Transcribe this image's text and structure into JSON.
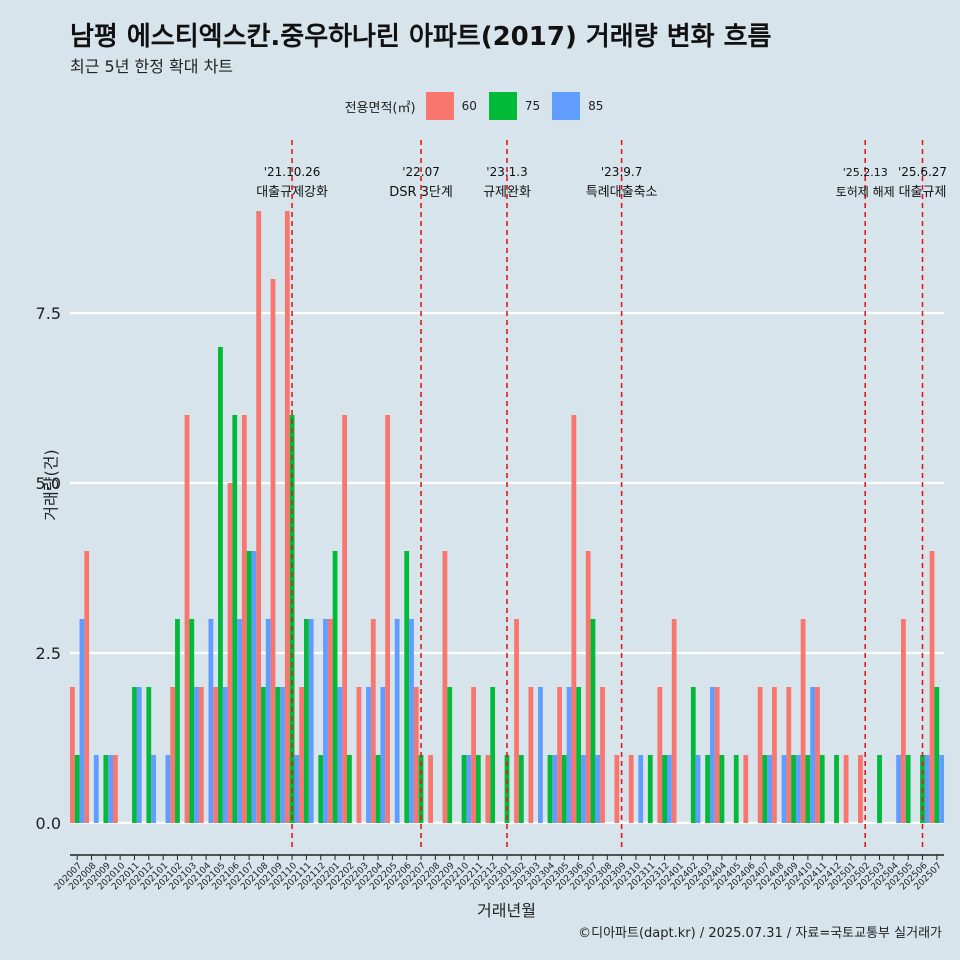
{
  "title": "남평 에스티엑스칸.중우하나린 아파트(2017) 거래량 변화 흐름",
  "subtitle": "최근 5년 한정 확대 차트",
  "caption": "©디아파트(dapt.kr) / 2025.07.31 / 자료=국토교통부 실거래가",
  "legend": {
    "title": "전용면적(㎡)",
    "items": [
      {
        "label": "60",
        "color": "#f8766d"
      },
      {
        "label": "75",
        "color": "#00ba38"
      },
      {
        "label": "85",
        "color": "#619cff"
      }
    ]
  },
  "chart_data": {
    "type": "bar",
    "xlabel": "거래년월",
    "ylabel": "거래량(건)",
    "ylim": [
      0,
      9
    ],
    "yticks": [
      0.0,
      2.5,
      5.0,
      7.5
    ],
    "ytick_labels": [
      "0.0",
      "2.5",
      "5.0",
      "7.5"
    ],
    "grid": true,
    "categories": [
      "202007",
      "202008",
      "202009",
      "202010",
      "202011",
      "202012",
      "202101",
      "202102",
      "202103",
      "202104",
      "202105",
      "202106",
      "202107",
      "202108",
      "202109",
      "202110",
      "202111",
      "202112",
      "202201",
      "202202",
      "202203",
      "202204",
      "202205",
      "202206",
      "202207",
      "202208",
      "202209",
      "202210",
      "202211",
      "202212",
      "202301",
      "202302",
      "202303",
      "202304",
      "202305",
      "202306",
      "202307",
      "202308",
      "202309",
      "202310",
      "202311",
      "202312",
      "202401",
      "202402",
      "202403",
      "202404",
      "202405",
      "202406",
      "202407",
      "202408",
      "202409",
      "202410",
      "202411",
      "202412",
      "202501",
      "202502",
      "202503",
      "202504",
      "202505",
      "202506",
      "202507"
    ],
    "series": [
      {
        "name": "60",
        "color": "#f8766d",
        "values": [
          2,
          4,
          null,
          1,
          null,
          null,
          null,
          2,
          6,
          2,
          2,
          5,
          6,
          9,
          8,
          9,
          2,
          null,
          3,
          6,
          2,
          3,
          6,
          null,
          2,
          1,
          4,
          null,
          2,
          1,
          null,
          3,
          2,
          null,
          2,
          6,
          4,
          2,
          1,
          1,
          null,
          2,
          3,
          null,
          null,
          2,
          null,
          1,
          2,
          2,
          2,
          3,
          2,
          null,
          1,
          1,
          null,
          null,
          3,
          null,
          4
        ]
      },
      {
        "name": "75",
        "color": "#00ba38",
        "values": [
          1,
          null,
          1,
          null,
          2,
          2,
          null,
          3,
          3,
          null,
          7,
          6,
          4,
          2,
          2,
          6,
          3,
          1,
          4,
          1,
          null,
          1,
          null,
          4,
          1,
          null,
          2,
          1,
          1,
          2,
          1,
          1,
          null,
          1,
          1,
          2,
          3,
          null,
          null,
          null,
          1,
          1,
          null,
          2,
          1,
          1,
          1,
          null,
          1,
          null,
          1,
          1,
          1,
          1,
          null,
          null,
          1,
          null,
          1,
          1,
          2
        ]
      },
      {
        "name": "85",
        "color": "#619cff",
        "values": [
          3,
          1,
          1,
          null,
          2,
          1,
          1,
          null,
          2,
          3,
          2,
          3,
          4,
          3,
          2,
          1,
          3,
          3,
          2,
          null,
          2,
          2,
          3,
          3,
          null,
          null,
          null,
          1,
          null,
          null,
          null,
          null,
          2,
          1,
          2,
          1,
          1,
          null,
          null,
          1,
          null,
          1,
          null,
          1,
          2,
          null,
          null,
          null,
          1,
          1,
          1,
          2,
          null,
          null,
          null,
          null,
          null,
          1,
          null,
          1,
          1
        ]
      }
    ],
    "events": [
      {
        "date": "'21.10.26",
        "label": "대출규제강화",
        "category": "202110"
      },
      {
        "date": "'22.07",
        "label": "DSR 3단계",
        "category": "202207"
      },
      {
        "date": "'23.1.3",
        "label": "규제완화",
        "category": "202301"
      },
      {
        "date": "'23.9.7",
        "label": "특례대출축소",
        "category": "202309"
      },
      {
        "date": "'25.2.13",
        "label": "토허제 해제",
        "category": "202502"
      },
      {
        "date": "'25.6.27",
        "label": "대출규제",
        "category": "202506"
      }
    ],
    "event_line_color": "#e41a1c"
  }
}
